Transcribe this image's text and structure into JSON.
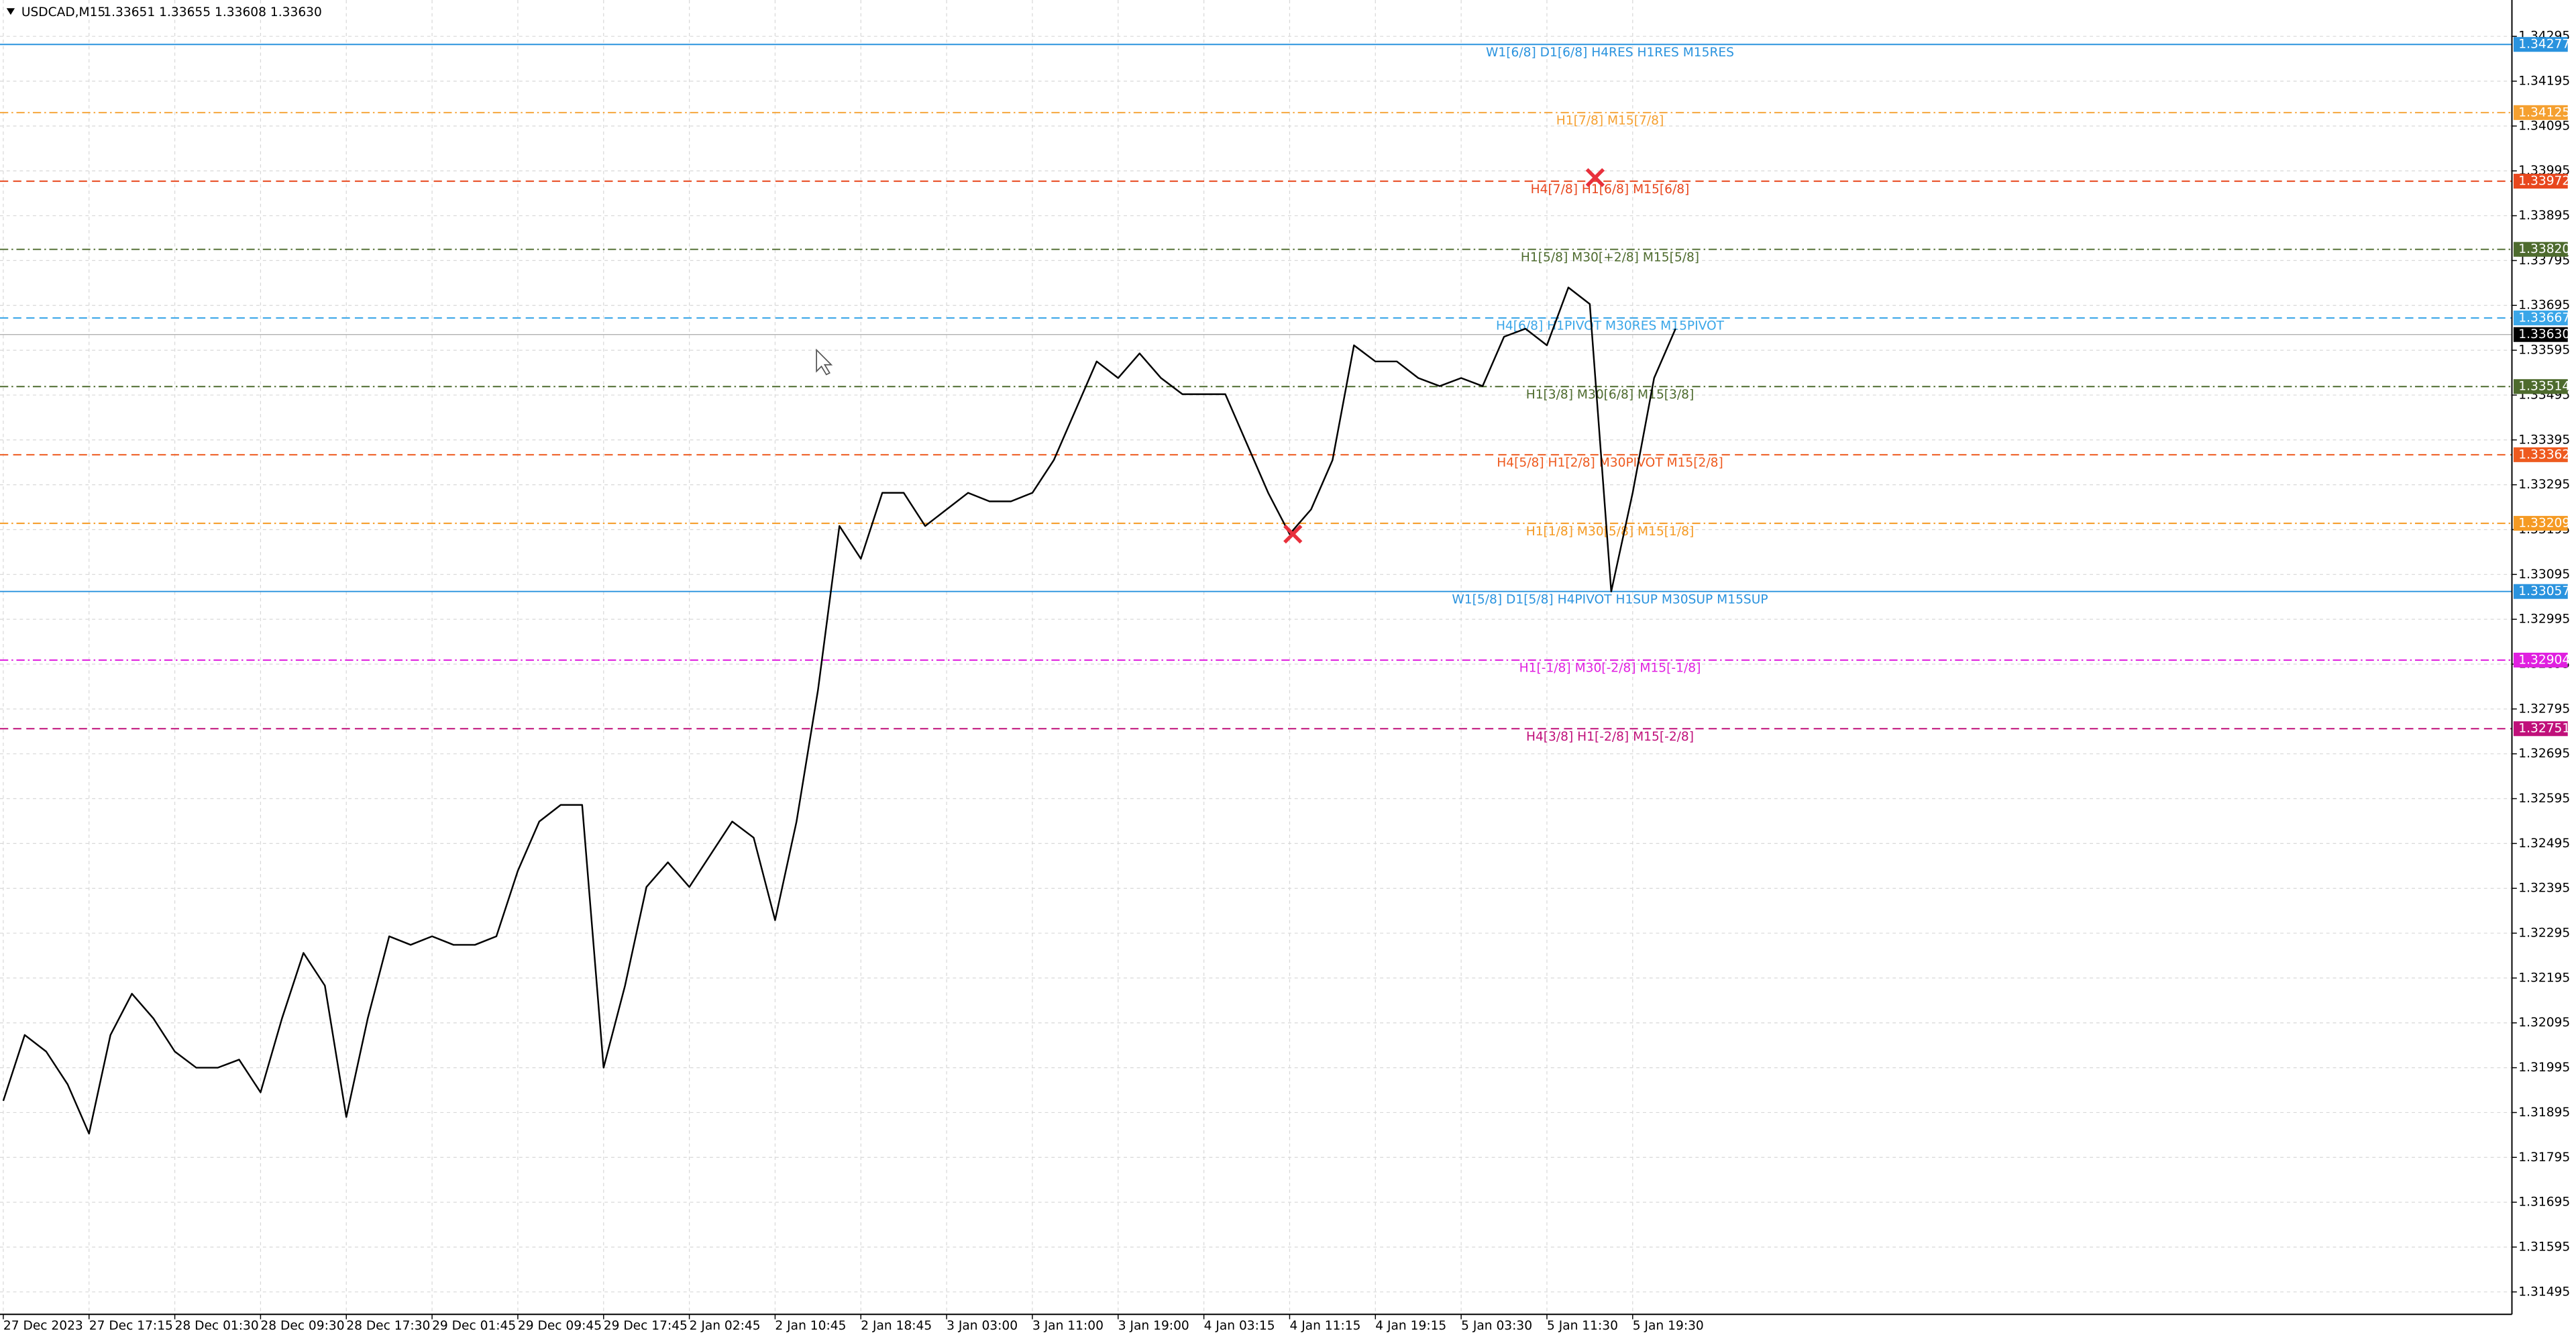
{
  "chart_data": {
    "type": "line",
    "symbol": "USDCAD,M15",
    "quote": "1.33651 1.33655 1.33608 1.33630",
    "categories": [
      "27 Dec 2023",
      null,
      null,
      null,
      "27 Dec 17:15",
      null,
      null,
      null,
      "28 Dec 01:30",
      null,
      null,
      null,
      "28 Dec 09:30",
      null,
      null,
      null,
      "28 Dec 17:30",
      null,
      null,
      null,
      "29 Dec 01:45",
      null,
      null,
      null,
      "29 Dec 09:45",
      null,
      null,
      null,
      "29 Dec 17:45",
      null,
      null,
      null,
      "2 Jan 02:45",
      null,
      null,
      null,
      "2 Jan 10:45",
      null,
      null,
      null,
      "2 Jan 18:45",
      null,
      null,
      null,
      "3 Jan 03:00",
      null,
      null,
      null,
      "3 Jan 11:00",
      null,
      null,
      null,
      "3 Jan 19:00",
      null,
      null,
      null,
      "4 Jan 03:15",
      null,
      null,
      null,
      "4 Jan 11:15",
      null,
      null,
      null,
      "4 Jan 19:15",
      null,
      null,
      null,
      "5 Jan 03:30",
      null,
      null,
      null,
      "5 Jan 11:30",
      null,
      null,
      null,
      "5 Jan 19:30",
      null,
      null
    ],
    "series": [
      {
        "name": "USDCAD",
        "color": "#000000",
        "values": [
          1.31921,
          1.32068,
          1.32031,
          1.31958,
          1.31848,
          1.32068,
          1.3216,
          1.32105,
          1.32031,
          1.31995,
          1.31995,
          1.32013,
          1.3194,
          1.32105,
          1.32251,
          1.32178,
          1.31885,
          1.32105,
          1.32288,
          1.32269,
          1.32288,
          1.32269,
          1.32269,
          1.32288,
          1.32434,
          1.32544,
          1.32581,
          1.32581,
          1.31995,
          1.32178,
          1.32398,
          1.32453,
          1.32398,
          1.32471,
          1.32544,
          1.32508,
          1.32324,
          1.32544,
          1.32837,
          1.33203,
          1.3313,
          1.33277,
          1.33277,
          1.33203,
          1.3324,
          1.33277,
          1.33258,
          1.33258,
          1.33277,
          1.3335,
          1.3346,
          1.3357,
          1.33533,
          1.33588,
          1.33533,
          1.33497,
          1.33497,
          1.33497,
          1.33387,
          1.33277,
          1.33185,
          1.3324,
          1.3335,
          1.33606,
          1.3357,
          1.3357,
          1.33533,
          1.33515,
          1.33533,
          1.33515,
          1.33625,
          1.33643,
          1.33606,
          1.33735,
          1.33698,
          1.33057,
          1.33277,
          1.33533,
          1.33643
        ]
      }
    ],
    "markers": {
      "color": "#e8303c",
      "x": [
        74.25,
        60.15
      ],
      "values": [
        1.3398,
        1.33185
      ]
    },
    "ylim": [
      1.31445,
      1.34376
    ],
    "yticks": [
      1.34295,
      1.34195,
      1.34095,
      1.33995,
      1.33895,
      1.33795,
      1.33695,
      1.33595,
      1.33495,
      1.33395,
      1.33295,
      1.33195,
      1.33095,
      1.32995,
      1.32895,
      1.32795,
      1.32695,
      1.32595,
      1.32495,
      1.32395,
      1.32295,
      1.32195,
      1.32095,
      1.31995,
      1.31895,
      1.31795,
      1.31695,
      1.31595,
      1.31495
    ],
    "grid": true,
    "levels": [
      {
        "value": 1.34277,
        "text": "W1[6/8] D1[6/8] H4RES H1RES M15RES",
        "color": "#2a93de",
        "style": "solid"
      },
      {
        "value": 1.34125,
        "text": "H1[7/8] M15[7/8]",
        "color": "#f5a030",
        "style": "dashdot"
      },
      {
        "value": 1.33972,
        "text": "H4[7/8] H1[6/8] M15[6/8]",
        "color": "#e8471e",
        "style": "dashed"
      },
      {
        "value": 1.3382,
        "price_label": "1.33820",
        "text": "H1[5/8] M30[+2/8] M15[5/8]",
        "color": "#4e6b2e",
        "style": "dashdot"
      },
      {
        "value": 1.33667,
        "text": "H4[6/8] H1PIVOT M30RES M15PIVOT",
        "color": "#3aa6e8",
        "style": "dashed"
      },
      {
        "value": 1.33514,
        "text": "H1[3/8] M30[6/8] M15[3/8]",
        "color": "#4e6b2e",
        "style": "dashdot"
      },
      {
        "value": 1.33362,
        "text": "H4[5/8] H1[2/8] M30PIVOT M15[2/8]",
        "color": "#ee5a1f",
        "style": "dashed"
      },
      {
        "value": 1.33209,
        "text": "H1[1/8] M30[5/8] M15[1/8]",
        "color": "#f59a23",
        "style": "dashdot"
      },
      {
        "value": 1.33057,
        "text": "W1[5/8] D1[5/8] H4PIVOT H1SUP M30SUP M15SUP",
        "color": "#2a93de",
        "style": "solid"
      },
      {
        "value": 1.32904,
        "text": "H1[-1/8] M30[-2/8] M15[-1/8]",
        "color": "#e020e0",
        "style": "dashdot"
      },
      {
        "value": 1.32751,
        "text": "H4[3/8] H1[-2/8] M15[-2/8]",
        "color": "#c0107a",
        "style": "dashed"
      }
    ],
    "current_price": {
      "value": 1.3363,
      "label": "1.33630"
    }
  }
}
